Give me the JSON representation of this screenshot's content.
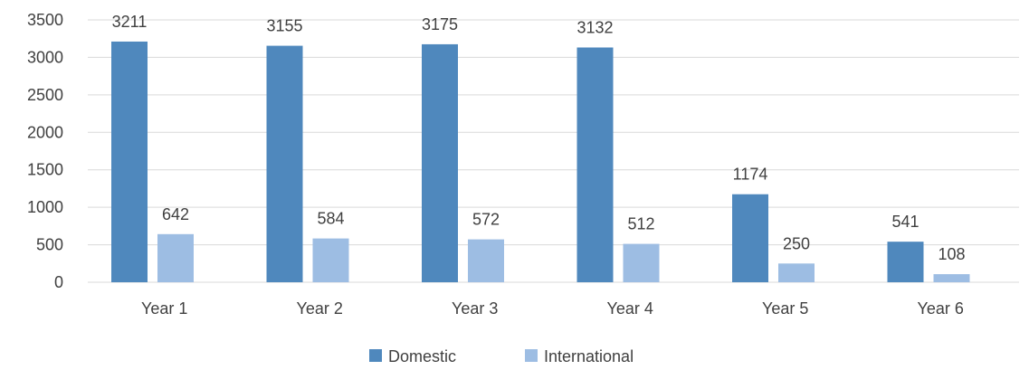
{
  "chart_data": {
    "type": "bar",
    "categories": [
      "Year 1",
      "Year 2",
      "Year 3",
      "Year 4",
      "Year 5",
      "Year 6"
    ],
    "series": [
      {
        "name": "Domestic",
        "values": [
          3211,
          3155,
          3175,
          3132,
          1174,
          541
        ],
        "color": "#4f88bd"
      },
      {
        "name": "International",
        "values": [
          642,
          584,
          572,
          512,
          250,
          108
        ],
        "color": "#9dbde3"
      }
    ],
    "ylim": [
      0,
      3500
    ],
    "yticks": [
      0,
      500,
      1000,
      1500,
      2000,
      2500,
      3000,
      3500
    ],
    "grid": true,
    "legend_position": "bottom",
    "gridline_color": "#d9d9d9",
    "text_color": "#404040"
  }
}
